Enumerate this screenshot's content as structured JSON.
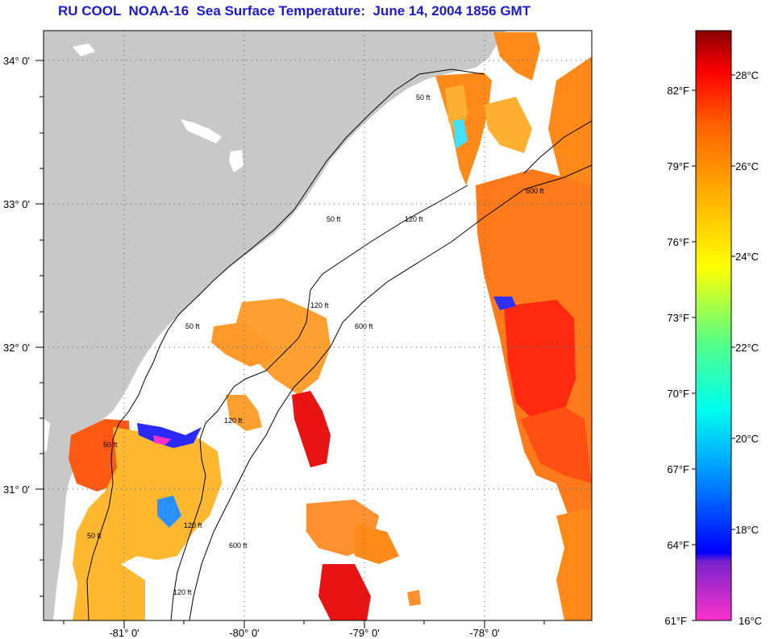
{
  "title": "RU COOL  NOAA-16  Sea Surface Temperature:  June 14, 2004 1856 GMT",
  "colors": {
    "land": "#c8c8c8",
    "title": "#1a1acc"
  },
  "lat_ticks": [
    "34° 0'",
    "33° 0'",
    "32° 0'",
    "31° 0'"
  ],
  "lon_ticks": [
    "-81° 0'",
    "-80° 0'",
    "-79° 0'",
    "-78° 0'"
  ],
  "contour_labels": [
    {
      "id": "c1",
      "text": "50 ft"
    },
    {
      "id": "c2",
      "text": "50 ft"
    },
    {
      "id": "c3",
      "text": "120 ft"
    },
    {
      "id": "c4",
      "text": "600 ft"
    },
    {
      "id": "c5",
      "text": "50 ft"
    },
    {
      "id": "c6",
      "text": "120 ft"
    },
    {
      "id": "c7",
      "text": "600 ft"
    },
    {
      "id": "c8",
      "text": "120 ft"
    },
    {
      "id": "c9",
      "text": "50 ft"
    },
    {
      "id": "c10",
      "text": "120 ft"
    },
    {
      "id": "c11",
      "text": "600 ft"
    },
    {
      "id": "c12",
      "text": "50 ft"
    },
    {
      "id": "c13",
      "text": "120 ft"
    }
  ],
  "colorbar": {
    "f_labels": [
      "82°F",
      "79°F",
      "76°F",
      "73°F",
      "70°F",
      "67°F",
      "64°F",
      "61°F"
    ],
    "c_labels": [
      "28°C",
      "26°C",
      "24°C",
      "22°C",
      "20°C",
      "18°C",
      "16°C"
    ]
  }
}
